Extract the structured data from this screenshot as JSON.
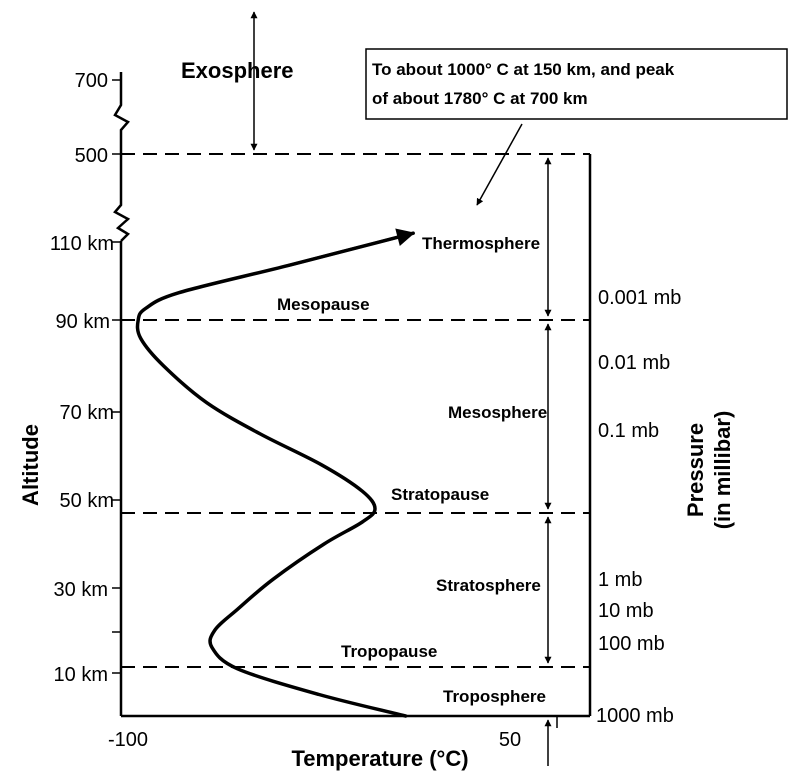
{
  "title": "",
  "x_axis": {
    "title": "Temperature (°C)",
    "tick_labels": [
      "-100",
      "50"
    ]
  },
  "altitude_axis": {
    "title": "Altitude",
    "tick_labels": [
      "700",
      "500",
      "110 km",
      "90 km",
      "70 km",
      "50 km",
      "30 km",
      "10 km"
    ]
  },
  "pressure_axis": {
    "title_line1": "Pressure",
    "title_line2": "(in millibar)",
    "labels": [
      "0.001 mb",
      "0.01 mb",
      "0.1 mb",
      "1 mb",
      "10 mb",
      "100 mb",
      "1000 mb"
    ]
  },
  "layers": {
    "exosphere": "Exosphere",
    "thermosphere": "Thermosphere",
    "mesopause": "Mesopause",
    "mesosphere": "Mesosphere",
    "stratopause": "Stratopause",
    "stratosphere": "Stratosphere",
    "tropopause": "Tropopause",
    "troposphere": "Troposphere"
  },
  "note": {
    "line1": "To about 1000° C at 150 km, and peak",
    "line2": "of about 1780° C at 700 km"
  },
  "temperature_profile": [
    {
      "altitude_km": 0,
      "temp_c": 9
    },
    {
      "altitude_km": 5,
      "temp_c": -25
    },
    {
      "altitude_km": 11,
      "temp_c": -57
    },
    {
      "altitude_km": 16,
      "temp_c": -67
    },
    {
      "altitude_km": 20,
      "temp_c": -66
    },
    {
      "altitude_km": 25,
      "temp_c": -57
    },
    {
      "altitude_km": 32,
      "temp_c": -43
    },
    {
      "altitude_km": 40,
      "temp_c": -23
    },
    {
      "altitude_km": 45,
      "temp_c": -8
    },
    {
      "altitude_km": 48,
      "temp_c": -3
    },
    {
      "altitude_km": 52,
      "temp_c": -8
    },
    {
      "altitude_km": 58,
      "temp_c": -24
    },
    {
      "altitude_km": 65,
      "temp_c": -48
    },
    {
      "altitude_km": 72,
      "temp_c": -69
    },
    {
      "altitude_km": 80,
      "temp_c": -86
    },
    {
      "altitude_km": 86,
      "temp_c": -95
    },
    {
      "altitude_km": 90,
      "temp_c": -96
    },
    {
      "altitude_km": 93,
      "temp_c": -93
    },
    {
      "altitude_km": 97,
      "temp_c": -80
    },
    {
      "altitude_km": 104,
      "temp_c": -37
    },
    {
      "altitude_km": 112,
      "temp_c": 12
    }
  ],
  "boundaries_km": {
    "tropopause": 11,
    "stratopause": 47,
    "mesopause": 90
  }
}
